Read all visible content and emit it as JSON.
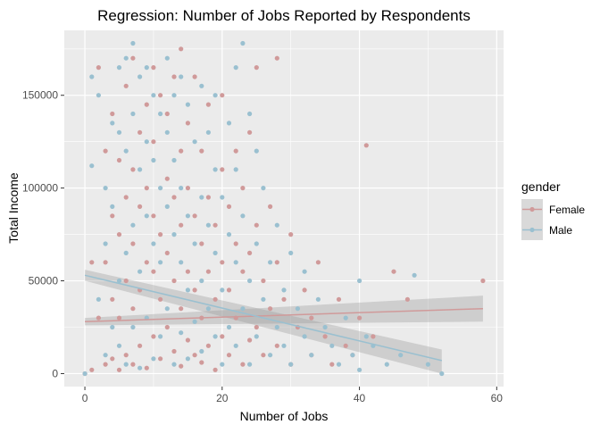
{
  "chart_data": {
    "type": "scatter",
    "title": "Regression: Number of Jobs Reported by Respondents",
    "xlabel": "Number of Jobs",
    "ylabel": "Total Income",
    "xlim": [
      -3,
      61
    ],
    "ylim": [
      -7000,
      185000
    ],
    "x_ticks": [
      0,
      20,
      40,
      60
    ],
    "y_ticks": [
      0,
      50000,
      100000,
      150000
    ],
    "y_tick_labels": [
      "0",
      "50000",
      "100000",
      "150000"
    ],
    "grid": true,
    "legend": {
      "title": "gender",
      "position": "right",
      "entries": [
        "Female",
        "Male"
      ]
    },
    "series": [
      {
        "name": "Female",
        "color": "#d09a9a",
        "points": [
          [
            0,
            0
          ],
          [
            1,
            2000
          ],
          [
            1,
            60000
          ],
          [
            2,
            30000
          ],
          [
            2,
            165000
          ],
          [
            3,
            5000
          ],
          [
            3,
            60000
          ],
          [
            3,
            120000
          ],
          [
            4,
            8000
          ],
          [
            4,
            40000
          ],
          [
            4,
            85000
          ],
          [
            4,
            140000
          ],
          [
            5,
            2000
          ],
          [
            5,
            30000
          ],
          [
            5,
            75000
          ],
          [
            5,
            115000
          ],
          [
            6,
            10000
          ],
          [
            6,
            50000
          ],
          [
            6,
            95000
          ],
          [
            6,
            155000
          ],
          [
            7,
            5000
          ],
          [
            7,
            35000
          ],
          [
            7,
            70000
          ],
          [
            7,
            110000
          ],
          [
            7,
            170000
          ],
          [
            8,
            15000
          ],
          [
            8,
            45000
          ],
          [
            8,
            90000
          ],
          [
            8,
            130000
          ],
          [
            9,
            3000
          ],
          [
            9,
            60000
          ],
          [
            9,
            100000
          ],
          [
            9,
            145000
          ],
          [
            10,
            20000
          ],
          [
            10,
            55000
          ],
          [
            10,
            85000
          ],
          [
            10,
            125000
          ],
          [
            10,
            165000
          ],
          [
            11,
            8000
          ],
          [
            11,
            40000
          ],
          [
            11,
            75000
          ],
          [
            11,
            150000
          ],
          [
            12,
            25000
          ],
          [
            12,
            65000
          ],
          [
            12,
            105000
          ],
          [
            12,
            140000
          ],
          [
            13,
            12000
          ],
          [
            13,
            50000
          ],
          [
            13,
            95000
          ],
          [
            13,
            160000
          ],
          [
            14,
            4000
          ],
          [
            14,
            35000
          ],
          [
            14,
            80000
          ],
          [
            14,
            120000
          ],
          [
            14,
            175000
          ],
          [
            15,
            18000
          ],
          [
            15,
            55000
          ],
          [
            15,
            100000
          ],
          [
            15,
            135000
          ],
          [
            16,
            10000
          ],
          [
            16,
            45000
          ],
          [
            16,
            85000
          ],
          [
            16,
            160000
          ],
          [
            17,
            6000
          ],
          [
            17,
            30000
          ],
          [
            17,
            70000
          ],
          [
            17,
            120000
          ],
          [
            18,
            15000
          ],
          [
            18,
            55000
          ],
          [
            18,
            95000
          ],
          [
            18,
            145000
          ],
          [
            19,
            2000
          ],
          [
            19,
            40000
          ],
          [
            19,
            80000
          ],
          [
            20,
            20000
          ],
          [
            20,
            60000
          ],
          [
            20,
            110000
          ],
          [
            20,
            150000
          ],
          [
            21,
            10000
          ],
          [
            21,
            45000
          ],
          [
            21,
            90000
          ],
          [
            22,
            30000
          ],
          [
            22,
            70000
          ],
          [
            22,
            120000
          ],
          [
            23,
            5000
          ],
          [
            23,
            55000
          ],
          [
            23,
            100000
          ],
          [
            24,
            18000
          ],
          [
            24,
            65000
          ],
          [
            24,
            130000
          ],
          [
            25,
            25000
          ],
          [
            25,
            80000
          ],
          [
            25,
            165000
          ],
          [
            26,
            10000
          ],
          [
            26,
            50000
          ],
          [
            27,
            35000
          ],
          [
            27,
            90000
          ],
          [
            28,
            15000
          ],
          [
            28,
            60000
          ],
          [
            28,
            170000
          ],
          [
            29,
            40000
          ],
          [
            30,
            5000
          ],
          [
            30,
            75000
          ],
          [
            31,
            25000
          ],
          [
            32,
            45000
          ],
          [
            33,
            10000
          ],
          [
            33,
            30000
          ],
          [
            34,
            60000
          ],
          [
            35,
            20000
          ],
          [
            36,
            5000
          ],
          [
            37,
            40000
          ],
          [
            38,
            15000
          ],
          [
            39,
            10000
          ],
          [
            40,
            30000
          ],
          [
            41,
            123000
          ],
          [
            42,
            20000
          ],
          [
            45,
            55000
          ],
          [
            47,
            40000
          ],
          [
            58,
            50000
          ]
        ]
      },
      {
        "name": "Male",
        "color": "#9ac0d0",
        "points": [
          [
            0,
            0
          ],
          [
            1,
            112000
          ],
          [
            1,
            160000
          ],
          [
            2,
            40000
          ],
          [
            2,
            150000
          ],
          [
            3,
            10000
          ],
          [
            3,
            70000
          ],
          [
            3,
            100000
          ],
          [
            4,
            25000
          ],
          [
            4,
            90000
          ],
          [
            4,
            135000
          ],
          [
            5,
            15000
          ],
          [
            5,
            50000
          ],
          [
            5,
            130000
          ],
          [
            5,
            165000
          ],
          [
            6,
            5000
          ],
          [
            6,
            65000
          ],
          [
            6,
            120000
          ],
          [
            6,
            170000
          ],
          [
            7,
            25000
          ],
          [
            7,
            80000
          ],
          [
            7,
            140000
          ],
          [
            7,
            178000
          ],
          [
            8,
            3000
          ],
          [
            8,
            55000
          ],
          [
            8,
            110000
          ],
          [
            8,
            160000
          ],
          [
            9,
            30000
          ],
          [
            9,
            85000
          ],
          [
            9,
            125000
          ],
          [
            9,
            165000
          ],
          [
            10,
            8000
          ],
          [
            10,
            70000
          ],
          [
            10,
            115000
          ],
          [
            10,
            150000
          ],
          [
            11,
            20000
          ],
          [
            11,
            60000
          ],
          [
            11,
            100000
          ],
          [
            11,
            140000
          ],
          [
            12,
            35000
          ],
          [
            12,
            90000
          ],
          [
            12,
            130000
          ],
          [
            12,
            170000
          ],
          [
            13,
            5000
          ],
          [
            13,
            75000
          ],
          [
            13,
            115000
          ],
          [
            13,
            150000
          ],
          [
            14,
            22000
          ],
          [
            14,
            60000
          ],
          [
            14,
            100000
          ],
          [
            14,
            160000
          ],
          [
            15,
            8000
          ],
          [
            15,
            45000
          ],
          [
            15,
            85000
          ],
          [
            15,
            145000
          ],
          [
            16,
            28000
          ],
          [
            16,
            70000
          ],
          [
            16,
            125000
          ],
          [
            17,
            12000
          ],
          [
            17,
            50000
          ],
          [
            17,
            95000
          ],
          [
            17,
            155000
          ],
          [
            18,
            35000
          ],
          [
            18,
            80000
          ],
          [
            18,
            130000
          ],
          [
            19,
            20000
          ],
          [
            19,
            65000
          ],
          [
            19,
            110000
          ],
          [
            19,
            150000
          ],
          [
            20,
            5000
          ],
          [
            20,
            45000
          ],
          [
            20,
            95000
          ],
          [
            21,
            25000
          ],
          [
            21,
            75000
          ],
          [
            21,
            135000
          ],
          [
            22,
            15000
          ],
          [
            22,
            60000
          ],
          [
            22,
            110000
          ],
          [
            22,
            165000
          ],
          [
            23,
            178000
          ],
          [
            23,
            35000
          ],
          [
            23,
            85000
          ],
          [
            24,
            5000
          ],
          [
            24,
            50000
          ],
          [
            24,
            140000
          ],
          [
            25,
            20000
          ],
          [
            25,
            70000
          ],
          [
            25,
            120000
          ],
          [
            26,
            40000
          ],
          [
            26,
            100000
          ],
          [
            27,
            10000
          ],
          [
            27,
            60000
          ],
          [
            28,
            25000
          ],
          [
            28,
            80000
          ],
          [
            29,
            15000
          ],
          [
            29,
            45000
          ],
          [
            30,
            5000
          ],
          [
            30,
            65000
          ],
          [
            31,
            35000
          ],
          [
            32,
            20000
          ],
          [
            32,
            55000
          ],
          [
            33,
            10000
          ],
          [
            34,
            40000
          ],
          [
            35,
            25000
          ],
          [
            36,
            15000
          ],
          [
            37,
            5000
          ],
          [
            38,
            30000
          ],
          [
            39,
            10000
          ],
          [
            40,
            2000
          ],
          [
            40,
            50000
          ],
          [
            41,
            20000
          ],
          [
            42,
            15000
          ],
          [
            44,
            5000
          ],
          [
            46,
            10000
          ],
          [
            48,
            53000
          ],
          [
            50,
            5000
          ],
          [
            52,
            0
          ]
        ]
      }
    ],
    "regression": [
      {
        "name": "Female",
        "color": "#d09a9a",
        "x": [
          0,
          58
        ],
        "y": [
          28000,
          35000
        ],
        "ci_low": [
          26000,
          28000
        ],
        "ci_high": [
          30000,
          42000
        ]
      },
      {
        "name": "Male",
        "color": "#9ac0d0",
        "x": [
          0,
          52
        ],
        "y": [
          53000,
          7000
        ],
        "ci_low": [
          50000,
          0
        ],
        "ci_high": [
          56000,
          13000
        ]
      }
    ]
  }
}
